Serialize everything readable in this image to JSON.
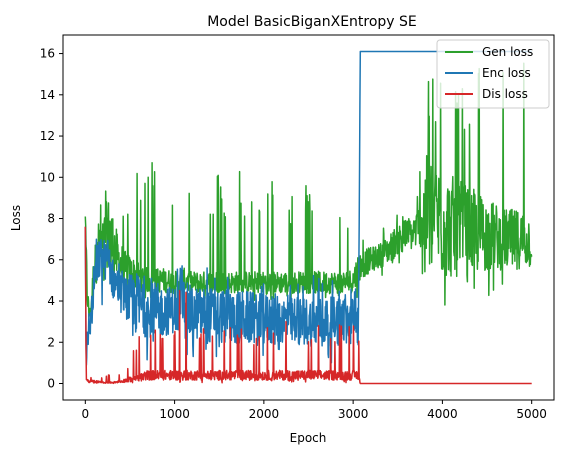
{
  "chart_data": {
    "type": "line",
    "title": "Model BasicBiganXEntropy SE",
    "xlabel": "Epoch",
    "ylabel": "Loss",
    "xlim": [
      -250,
      5250
    ],
    "ylim": [
      -0.8,
      16.9
    ],
    "x_ticks": [
      0,
      1000,
      2000,
      3000,
      4000,
      5000
    ],
    "x_tick_labels": [
      "0",
      "1000",
      "2000",
      "3000",
      "4000",
      "5000"
    ],
    "y_ticks": [
      0,
      2,
      4,
      6,
      8,
      10,
      12,
      14,
      16
    ],
    "y_tick_labels": [
      "0",
      "2",
      "4",
      "6",
      "8",
      "10",
      "12",
      "14",
      "16"
    ],
    "grid": false,
    "legend_position": "top-right",
    "series": [
      {
        "name": "Gen loss",
        "color": "#2ca02c",
        "x": [
          0,
          10,
          20,
          40,
          60,
          80,
          100,
          140,
          180,
          220,
          260,
          300,
          330,
          360,
          400,
          450,
          500,
          600,
          700,
          800,
          900,
          1000,
          1100,
          1200,
          1300,
          1400,
          1500,
          1600,
          1700,
          1800,
          1900,
          2000,
          2100,
          2200,
          2300,
          2400,
          2500,
          2600,
          2700,
          2800,
          2900,
          3000,
          3050,
          3080,
          3100,
          3200,
          3300,
          3400,
          3500,
          3600,
          3700,
          3750,
          3800,
          3850,
          3900,
          4000,
          4100,
          4200,
          4300,
          4400,
          4500,
          4600,
          4700,
          4800,
          4900,
          5000
        ],
        "y": [
          8.1,
          6.0,
          4.5,
          3.5,
          3.4,
          4.6,
          5.8,
          6.0,
          6.5,
          7.0,
          7.5,
          6.8,
          6.5,
          6.0,
          5.8,
          5.5,
          5.4,
          5.2,
          5.0,
          5.0,
          5.0,
          4.9,
          5.0,
          4.9,
          4.9,
          4.9,
          4.9,
          4.9,
          4.9,
          4.9,
          4.9,
          4.9,
          4.9,
          4.9,
          4.9,
          4.9,
          4.9,
          4.9,
          4.9,
          4.9,
          4.9,
          5.0,
          5.5,
          5.7,
          5.8,
          6.0,
          6.2,
          6.5,
          7.0,
          7.2,
          7.4,
          7.8,
          8.2,
          8.5,
          8.0,
          7.8,
          7.6,
          7.5,
          7.4,
          7.3,
          7.2,
          7.1,
          7.0,
          7.0,
          7.0,
          6.9
        ],
        "noise_envelope_upper": [
          8.1,
          7.5,
          6.8,
          6.0,
          6.0,
          6.6,
          7.2,
          8.0,
          9.5,
          10.7,
          10.0,
          14.3,
          10.0,
          9.0,
          9.2,
          8.8,
          8.6,
          10.6,
          10.2,
          12.6,
          11.0,
          9.3,
          13.4,
          9.0,
          9.5,
          9.0,
          10.5,
          9.3,
          11.2,
          9.5,
          9.0,
          9.0,
          10.0,
          8.8,
          9.2,
          12.5,
          9.0,
          11.0,
          9.6,
          9.2,
          9.0,
          9.0,
          7.0,
          7.0,
          7.1,
          7.4,
          7.5,
          7.8,
          8.2,
          8.6,
          9.0,
          10.5,
          16.0,
          16.0,
          16.0,
          16.0,
          16.0,
          16.0,
          16.0,
          16.0,
          16.0,
          16.0,
          16.0,
          16.0,
          16.0,
          16.0
        ],
        "noise_envelope_lower": [
          3.5,
          3.2,
          3.0,
          3.0,
          3.0,
          3.5,
          4.0,
          4.0,
          4.2,
          4.5,
          4.5,
          4.0,
          4.0,
          4.0,
          4.0,
          4.0,
          4.0,
          4.0,
          4.0,
          4.0,
          4.0,
          4.0,
          4.0,
          4.0,
          4.0,
          4.0,
          4.0,
          4.0,
          4.0,
          4.0,
          4.0,
          4.0,
          4.0,
          4.0,
          4.0,
          4.0,
          4.0,
          4.0,
          4.0,
          4.0,
          4.0,
          4.0,
          4.2,
          4.5,
          4.6,
          5.0,
          5.2,
          5.4,
          5.6,
          5.8,
          6.0,
          6.0,
          4.0,
          3.6,
          3.3,
          3.2,
          3.4,
          3.6,
          3.8,
          4.0,
          4.2,
          4.4,
          4.5,
          4.6,
          4.6,
          4.6
        ]
      },
      {
        "name": "Enc loss",
        "color": "#1f77b4",
        "x": [
          0,
          10,
          20,
          40,
          60,
          80,
          100,
          140,
          180,
          220,
          260,
          300,
          330,
          360,
          400,
          450,
          500,
          600,
          700,
          800,
          900,
          1000,
          1100,
          1200,
          1300,
          1400,
          1500,
          1600,
          1700,
          1800,
          1900,
          2000,
          2100,
          2200,
          2300,
          2400,
          2500,
          2600,
          2700,
          2800,
          2900,
          3000,
          3060,
          3080,
          3100,
          3500,
          4000,
          4500,
          5000
        ],
        "y": [
          7.6,
          0.4,
          2.0,
          2.5,
          3.0,
          4.0,
          5.0,
          5.8,
          6.2,
          6.0,
          5.8,
          5.2,
          4.8,
          4.8,
          4.4,
          4.2,
          4.0,
          3.8,
          3.6,
          3.5,
          3.5,
          3.6,
          3.5,
          3.4,
          3.4,
          3.3,
          3.3,
          3.2,
          3.2,
          3.2,
          3.1,
          3.1,
          3.1,
          3.1,
          3.0,
          3.0,
          3.0,
          3.0,
          3.0,
          3.0,
          3.0,
          3.0,
          3.0,
          16.1,
          16.1,
          16.1,
          16.1,
          16.1,
          16.1
        ],
        "noise_envelope_upper": [
          7.6,
          2.0,
          3.0,
          3.5,
          4.5,
          5.5,
          6.5,
          7.5,
          7.8,
          7.6,
          7.2,
          6.8,
          6.5,
          6.2,
          6.0,
          5.8,
          6.2,
          6.5,
          5.8,
          5.8,
          5.5,
          5.5,
          6.0,
          5.6,
          5.5,
          5.8,
          5.5,
          5.6,
          5.5,
          5.4,
          5.3,
          5.2,
          5.5,
          5.0,
          5.2,
          5.4,
          5.6,
          5.3,
          5.0,
          5.2,
          5.0,
          5.0,
          5.0,
          16.1,
          16.1,
          16.1,
          16.1,
          16.1,
          16.1
        ],
        "noise_envelope_lower": [
          0.4,
          0.2,
          1.0,
          1.5,
          2.0,
          2.5,
          3.0,
          3.5,
          3.5,
          3.4,
          3.2,
          2.8,
          1.2,
          2.0,
          1.5,
          1.0,
          1.0,
          1.0,
          1.0,
          1.0,
          1.0,
          1.0,
          1.0,
          1.0,
          1.0,
          1.0,
          1.0,
          1.0,
          1.0,
          1.0,
          1.0,
          1.0,
          1.0,
          1.0,
          1.0,
          1.0,
          1.0,
          1.0,
          1.0,
          1.0,
          1.0,
          1.0,
          1.0,
          16.1,
          16.1,
          16.1,
          16.1,
          16.1,
          16.1
        ]
      },
      {
        "name": "Dis loss",
        "color": "#d62728",
        "x": [
          0,
          10,
          20,
          40,
          100,
          200,
          300,
          400,
          500,
          600,
          700,
          800,
          900,
          1000,
          1100,
          1200,
          1300,
          1400,
          1500,
          1600,
          1700,
          1800,
          1900,
          2000,
          2100,
          2200,
          2300,
          2400,
          2500,
          2600,
          2700,
          2800,
          2900,
          3000,
          3060,
          3080,
          3100,
          3500,
          4000,
          4500,
          5000
        ],
        "y": [
          7.6,
          0.3,
          0.15,
          0.1,
          0.1,
          0.05,
          0.05,
          0.1,
          0.2,
          0.3,
          0.4,
          0.4,
          0.4,
          0.4,
          0.4,
          0.4,
          0.4,
          0.4,
          0.4,
          0.4,
          0.4,
          0.4,
          0.4,
          0.4,
          0.4,
          0.4,
          0.4,
          0.4,
          0.4,
          0.4,
          0.4,
          0.4,
          0.4,
          0.4,
          0.4,
          0.0,
          0.0,
          0.0,
          0.0,
          0.0,
          0.0
        ],
        "noise_envelope_upper": [
          7.6,
          1.0,
          0.5,
          0.3,
          0.3,
          0.3,
          0.5,
          0.5,
          1.0,
          2.5,
          2.0,
          3.2,
          2.5,
          2.8,
          6.2,
          2.5,
          2.8,
          2.5,
          3.0,
          3.2,
          2.6,
          2.8,
          2.5,
          3.2,
          3.0,
          3.4,
          2.8,
          3.2,
          2.6,
          3.0,
          3.2,
          2.8,
          3.0,
          2.8,
          3.0,
          0.0,
          0.0,
          0.0,
          0.0,
          0.0,
          0.0
        ],
        "noise_envelope_lower": [
          0.1,
          0.0,
          0.0,
          0.0,
          0.0,
          0.0,
          0.0,
          0.0,
          0.0,
          0.0,
          0.0,
          0.0,
          0.0,
          0.0,
          0.0,
          0.0,
          0.0,
          0.0,
          0.0,
          0.0,
          0.0,
          0.0,
          0.0,
          0.0,
          0.0,
          0.0,
          0.0,
          0.0,
          0.0,
          0.0,
          0.0,
          0.0,
          0.0,
          0.0,
          0.0,
          0.0,
          0.0,
          0.0,
          0.0,
          0.0,
          0.0
        ]
      }
    ]
  }
}
